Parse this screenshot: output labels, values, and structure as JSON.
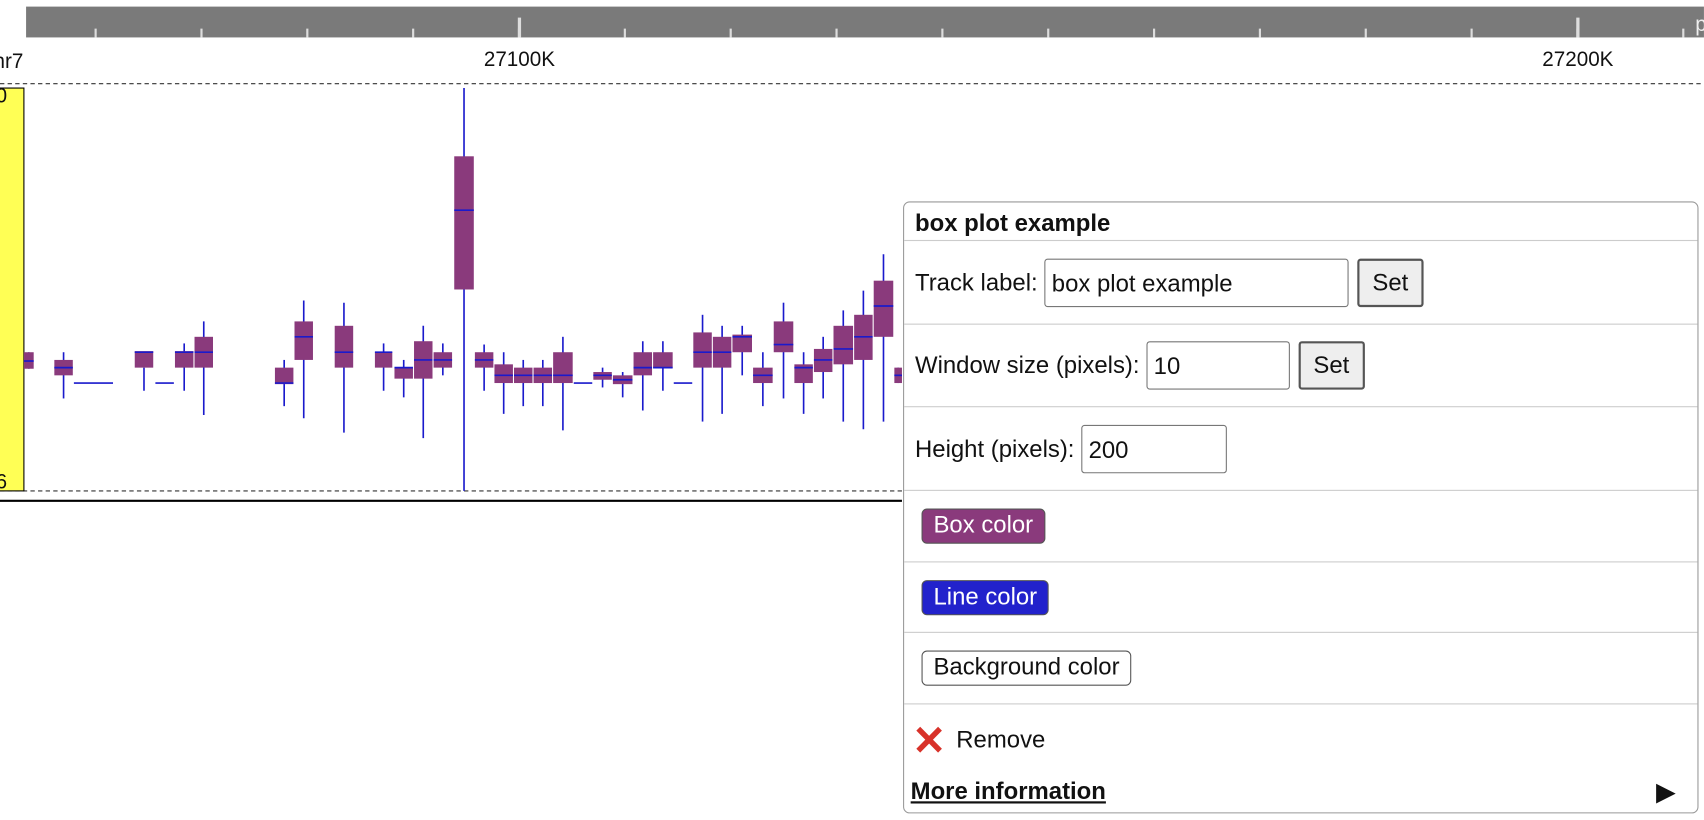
{
  "ruler": {
    "chrom": "hr7",
    "ticks": [
      "27100K",
      "27200K"
    ],
    "edge": "p"
  },
  "track": {
    "ymax": "0",
    "ymin": "6"
  },
  "popup": {
    "title": "box plot example",
    "track_label": {
      "label": "Track label:",
      "value": "box plot example",
      "button": "Set"
    },
    "window_size": {
      "label": "Window size (pixels):",
      "value": "10",
      "button": "Set"
    },
    "height": {
      "label": "Height (pixels):",
      "value": "200"
    },
    "box_color": "Box color",
    "line_color": "Line color",
    "background_color": "Background color",
    "remove": "Remove",
    "more_info": "More information"
  }
}
